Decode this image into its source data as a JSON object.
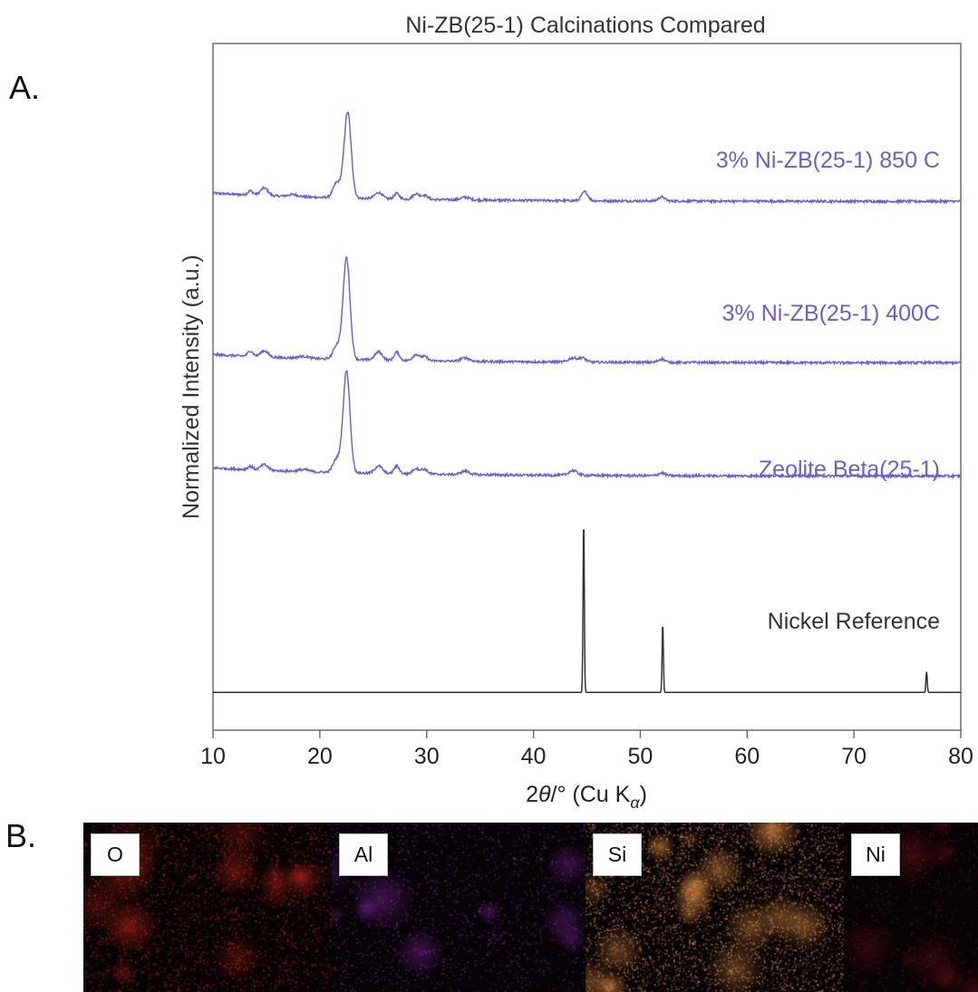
{
  "panels": {
    "a_label": "A.",
    "b_label": "B."
  },
  "chart_data": {
    "type": "line",
    "title": "Ni-ZB(25-1) Calcinations Compared",
    "ylabel": "Normalized Intensity (a.u.)",
    "xlabel": {
      "prefix": "2",
      "theta": "θ",
      "unit": "/° (Cu K",
      "sub": "α",
      "close": ")"
    },
    "xlim": [
      10,
      80
    ],
    "xticks": [
      10,
      20,
      30,
      40,
      50,
      60,
      70,
      80
    ],
    "y_ticks_shown": false,
    "colors": {
      "xrd": "#6b5cd9",
      "reference": "#333333",
      "axis": "#666666"
    },
    "series": [
      {
        "name": "3% Ni-ZB(25-1) 850 C",
        "baseline": 0.77,
        "decay": 0.012,
        "peaks": [
          [
            13.5,
            0.006,
            0.25
          ],
          [
            14.8,
            0.011,
            0.35
          ],
          [
            17.5,
            0.003,
            0.5
          ],
          [
            21.6,
            0.022,
            0.35
          ],
          [
            22.6,
            0.125,
            0.33
          ],
          [
            25.5,
            0.009,
            0.35
          ],
          [
            27.2,
            0.008,
            0.25
          ],
          [
            29.0,
            0.008,
            0.3
          ],
          [
            29.8,
            0.006,
            0.3
          ],
          [
            33.6,
            0.004,
            0.4
          ],
          [
            44.8,
            0.013,
            0.3
          ],
          [
            52.0,
            0.006,
            0.3
          ]
        ]
      },
      {
        "name": "3% Ni-ZB(25-1) 400C",
        "baseline": 0.535,
        "decay": 0.012,
        "peaks": [
          [
            13.5,
            0.008,
            0.25
          ],
          [
            14.8,
            0.009,
            0.35
          ],
          [
            18.5,
            0.003,
            0.5
          ],
          [
            21.6,
            0.02,
            0.35
          ],
          [
            22.5,
            0.148,
            0.32
          ],
          [
            25.5,
            0.012,
            0.35
          ],
          [
            27.2,
            0.012,
            0.25
          ],
          [
            29.0,
            0.009,
            0.3
          ],
          [
            29.8,
            0.006,
            0.3
          ],
          [
            33.6,
            0.005,
            0.4
          ],
          [
            43.7,
            0.006,
            0.4
          ],
          [
            44.6,
            0.006,
            0.3
          ],
          [
            52.0,
            0.005,
            0.3
          ]
        ]
      },
      {
        "name": "Zeolite Beta(25-1)",
        "baseline": 0.37,
        "decay": 0.012,
        "peaks": [
          [
            13.5,
            0.005,
            0.25
          ],
          [
            14.8,
            0.008,
            0.35
          ],
          [
            18.5,
            0.003,
            0.5
          ],
          [
            21.6,
            0.02,
            0.35
          ],
          [
            22.5,
            0.148,
            0.32
          ],
          [
            25.5,
            0.011,
            0.35
          ],
          [
            27.2,
            0.011,
            0.25
          ],
          [
            29.0,
            0.008,
            0.3
          ],
          [
            29.8,
            0.007,
            0.3
          ],
          [
            33.6,
            0.005,
            0.4
          ],
          [
            43.7,
            0.007,
            0.4
          ],
          [
            52.0,
            0.004,
            0.3
          ]
        ]
      },
      {
        "name": "Nickel Reference",
        "baseline": 0.055,
        "sticks": [
          [
            44.7,
            0.25
          ],
          [
            52.1,
            0.1
          ],
          [
            76.8,
            0.03
          ]
        ]
      }
    ]
  },
  "eds_maps": {
    "labels": [
      "O",
      "Al",
      "Si",
      "Ni"
    ],
    "colors": [
      "#c8281a",
      "#8a2ab0",
      "#e9954a",
      "#8a1622"
    ]
  }
}
